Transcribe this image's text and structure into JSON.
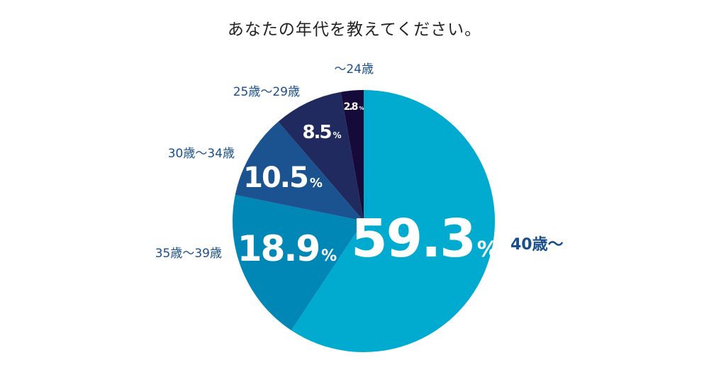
{
  "chart_data": {
    "type": "pie",
    "title": "あなたの年代を教えてください。",
    "start": "12 o'clock",
    "direction": "clockwise",
    "slices": [
      {
        "label": "40歳～",
        "value": 59.3,
        "value_text": "59.3",
        "unit": "%",
        "color": "#00ABCF",
        "label_color": "#1A4F8C"
      },
      {
        "label": "35歳～39歳",
        "value": 18.9,
        "value_text": "18.9",
        "unit": "%",
        "color": "#0087B5",
        "label_color": "#1A4F8C"
      },
      {
        "label": "30歳～34歳",
        "value": 10.5,
        "value_text": "10.5",
        "unit": "%",
        "color": "#1A5390",
        "label_color": "#1A4F8C"
      },
      {
        "label": "25歳～29歳",
        "value": 8.5,
        "value_text": "8.5",
        "unit": "%",
        "color": "#202A5E",
        "label_color": "#1A4F8C"
      },
      {
        "label": "～24歳",
        "value": 2.8,
        "value_text": "2.8",
        "unit": "%",
        "color": "#150A3A",
        "label_color": "#1A4F8C"
      }
    ]
  }
}
